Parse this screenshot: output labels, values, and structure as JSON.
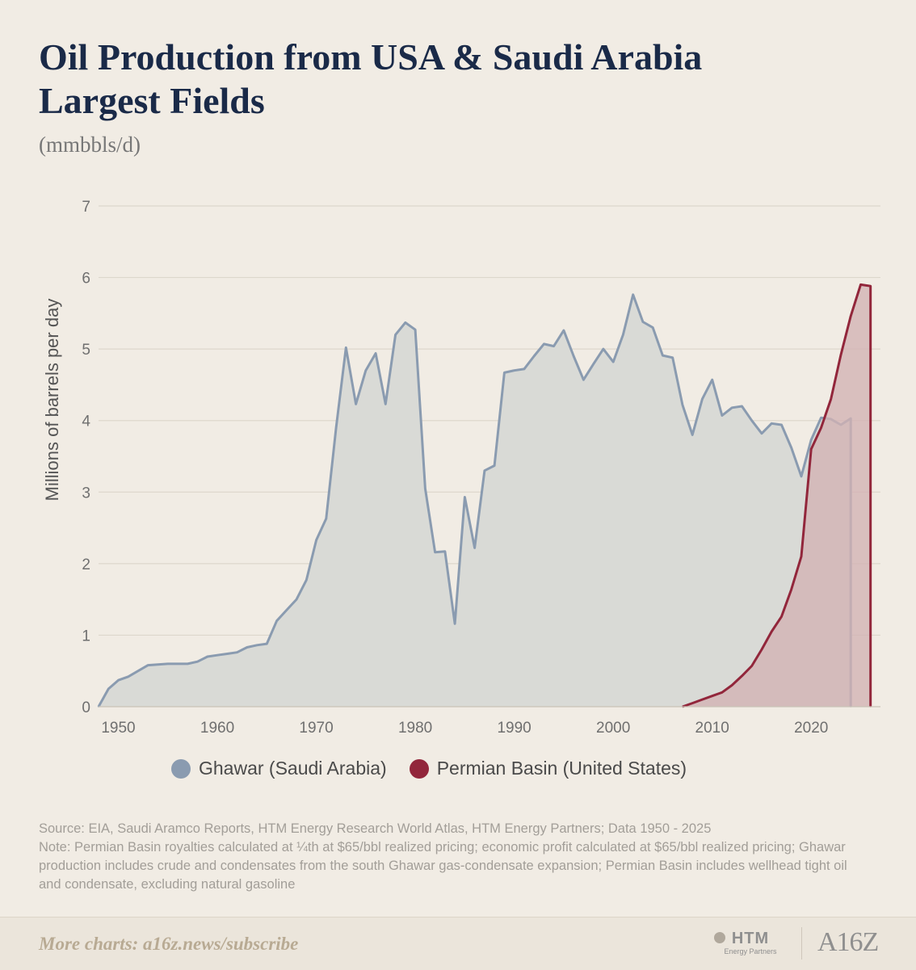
{
  "header": {
    "title_line1": "Oil Production from USA & Saudi Arabia",
    "title_line2": "Largest Fields",
    "subtitle": "(mmbbls/d)"
  },
  "legend": {
    "ghawar_label": "Ghawar (Saudi Arabia)",
    "permian_label": "Permian Basin (United States)"
  },
  "source": {
    "line1": "Source: EIA, Saudi Aramco Reports, HTM Energy Research World Atlas, HTM Energy Partners; Data 1950 - 2025",
    "line2": "Note: Permian Basin royalties calculated at ¼th at $65/bbl realized pricing; economic profit calculated at $65/bbl realized pricing; Ghawar production includes crude and condensates from the south Ghawar gas-condensate expansion; Permian Basin includes wellhead tight oil and condensate, excluding natural gasoline"
  },
  "footer": {
    "link_text": "More charts: a16z.news/subscribe",
    "htm_logo_text": "HTM",
    "htm_logo_sub": "Energy Partners",
    "a16z_logo_text": "A16Z"
  },
  "colors": {
    "ghawar_line": "#8a9bb0",
    "ghawar_fill": "#d9dad6",
    "permian_line": "#92263b",
    "permian_fill": "#d2b2b4",
    "grid": "#ddd7cc",
    "title": "#1a2a48"
  },
  "chart_data": {
    "type": "area",
    "title": "Oil Production from USA & Saudi Arabia Largest Fields",
    "subtitle": "(mmbbls/d)",
    "xlabel": "",
    "ylabel": "Millions of barrels per day",
    "xlim": [
      1948,
      2027
    ],
    "ylim": [
      0,
      7
    ],
    "x_ticks": [
      1950,
      1960,
      1970,
      1980,
      1990,
      2000,
      2010,
      2020
    ],
    "y_ticks": [
      0,
      1,
      2,
      3,
      4,
      5,
      6,
      7
    ],
    "grid": true,
    "legend_position": "bottom",
    "series": [
      {
        "name": "Ghawar (Saudi Arabia)",
        "color": "#8a9bb0",
        "points": [
          [
            1948,
            0.0
          ],
          [
            1949,
            0.25
          ],
          [
            1950,
            0.37
          ],
          [
            1951,
            0.42
          ],
          [
            1952,
            0.5
          ],
          [
            1953,
            0.58
          ],
          [
            1954,
            0.59
          ],
          [
            1955,
            0.6
          ],
          [
            1956,
            0.6
          ],
          [
            1957,
            0.6
          ],
          [
            1958,
            0.63
          ],
          [
            1959,
            0.7
          ],
          [
            1960,
            0.72
          ],
          [
            1961,
            0.74
          ],
          [
            1962,
            0.76
          ],
          [
            1963,
            0.83
          ],
          [
            1964,
            0.86
          ],
          [
            1965,
            0.88
          ],
          [
            1966,
            1.2
          ],
          [
            1967,
            1.35
          ],
          [
            1968,
            1.5
          ],
          [
            1969,
            1.77
          ],
          [
            1970,
            2.33
          ],
          [
            1971,
            2.63
          ],
          [
            1972,
            3.9
          ],
          [
            1973,
            5.02
          ],
          [
            1974,
            4.23
          ],
          [
            1975,
            4.7
          ],
          [
            1976,
            4.94
          ],
          [
            1977,
            4.23
          ],
          [
            1978,
            5.2
          ],
          [
            1979,
            5.37
          ],
          [
            1980,
            5.27
          ],
          [
            1981,
            3.05
          ],
          [
            1982,
            2.16
          ],
          [
            1983,
            2.17
          ],
          [
            1984,
            1.16
          ],
          [
            1985,
            2.93
          ],
          [
            1986,
            2.22
          ],
          [
            1987,
            3.3
          ],
          [
            1988,
            3.37
          ],
          [
            1989,
            4.67
          ],
          [
            1990,
            4.7
          ],
          [
            1991,
            4.72
          ],
          [
            1992,
            4.9
          ],
          [
            1993,
            5.07
          ],
          [
            1994,
            5.04
          ],
          [
            1995,
            5.26
          ],
          [
            1996,
            4.9
          ],
          [
            1997,
            4.57
          ],
          [
            1998,
            4.79
          ],
          [
            1999,
            5.0
          ],
          [
            2000,
            4.82
          ],
          [
            2001,
            5.2
          ],
          [
            2002,
            5.76
          ],
          [
            2003,
            5.38
          ],
          [
            2004,
            5.3
          ],
          [
            2005,
            4.91
          ],
          [
            2006,
            4.88
          ],
          [
            2007,
            4.22
          ],
          [
            2008,
            3.8
          ],
          [
            2009,
            4.3
          ],
          [
            2010,
            4.57
          ],
          [
            2011,
            4.07
          ],
          [
            2012,
            4.18
          ],
          [
            2013,
            4.2
          ],
          [
            2014,
            4.0
          ],
          [
            2015,
            3.82
          ],
          [
            2016,
            3.96
          ],
          [
            2017,
            3.94
          ],
          [
            2018,
            3.62
          ],
          [
            2019,
            3.22
          ],
          [
            2020,
            3.73
          ],
          [
            2021,
            4.04
          ],
          [
            2022,
            4.02
          ],
          [
            2023,
            3.94
          ],
          [
            2024,
            4.03
          ],
          [
            2024,
            0.0
          ]
        ]
      },
      {
        "name": "Permian Basin (United States)",
        "color": "#92263b",
        "points": [
          [
            2007,
            0.0
          ],
          [
            2008,
            0.05
          ],
          [
            2009,
            0.1
          ],
          [
            2010,
            0.15
          ],
          [
            2011,
            0.2
          ],
          [
            2012,
            0.3
          ],
          [
            2013,
            0.43
          ],
          [
            2014,
            0.57
          ],
          [
            2015,
            0.8
          ],
          [
            2016,
            1.05
          ],
          [
            2017,
            1.26
          ],
          [
            2018,
            1.64
          ],
          [
            2019,
            2.1
          ],
          [
            2020,
            3.6
          ],
          [
            2021,
            3.9
          ],
          [
            2022,
            4.3
          ],
          [
            2023,
            4.92
          ],
          [
            2024,
            5.46
          ],
          [
            2025,
            5.9
          ],
          [
            2026,
            5.88
          ],
          [
            2026,
            0.0
          ]
        ]
      }
    ]
  }
}
